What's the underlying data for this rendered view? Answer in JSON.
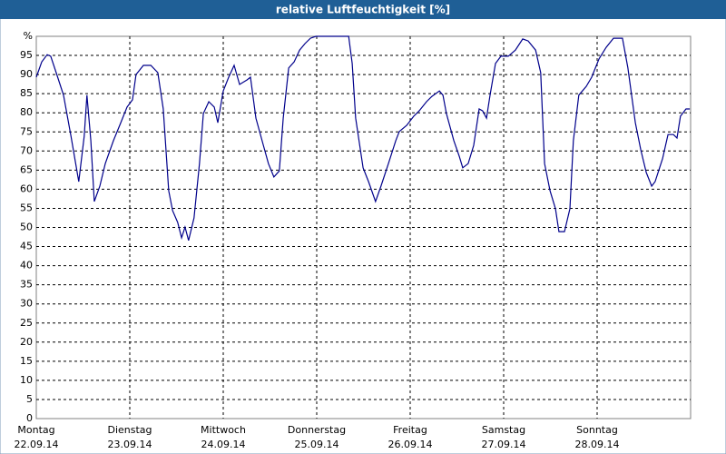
{
  "chart_data": {
    "type": "line",
    "title": "relative Luftfeuchtigkeit [%]",
    "xlim": [
      0,
      168
    ],
    "xticks": [
      {
        "value": 0,
        "label": "Montag"
      },
      {
        "value": 24,
        "label": "Dienstag"
      },
      {
        "value": 48,
        "label": "Mittwoch"
      },
      {
        "value": 72,
        "label": "Donnerstag"
      },
      {
        "value": 96,
        "label": "Freitag"
      },
      {
        "value": 120,
        "label": "Samstag"
      },
      {
        "value": 144,
        "label": "Sonntag"
      }
    ],
    "xtick_dates": [
      "22.09.14",
      "23.09.14",
      "24.09.14",
      "25.09.14",
      "26.09.14",
      "27.09.14",
      "28.09.14"
    ],
    "ylim": [
      0,
      100
    ],
    "yticks": [
      0,
      5,
      10,
      15,
      20,
      25,
      30,
      35,
      40,
      45,
      50,
      55,
      60,
      65,
      70,
      75,
      80,
      85,
      90,
      95,
      {
        "value": 100,
        "label": "%"
      }
    ],
    "grid": true,
    "series": [
      {
        "color": "#00008b",
        "x": [
          0,
          1.4,
          2.8,
          3.7,
          5.1,
          7.0,
          8.9,
          10.9,
          12.3,
          13.0,
          14.0,
          14.9,
          16.3,
          17.7,
          19.8,
          21.7,
          23.3,
          24.7,
          25.6,
          27.5,
          29.4,
          31.2,
          32.6,
          34.0,
          35.0,
          36.3,
          37.3,
          38.2,
          39.1,
          40.5,
          41.9,
          42.9,
          44.3,
          45.7,
          46.6,
          48.0,
          49.4,
          50.8,
          52.2,
          54.1,
          55.0,
          56.4,
          58.3,
          59.6,
          61.0,
          62.4,
          63.4,
          64.8,
          66.2,
          67.6,
          69.0,
          70.4,
          71.8,
          80.2,
          81.1,
          82.0,
          83.9,
          85.3,
          87.1,
          88.5,
          90.4,
          92.3,
          93.2,
          95.1,
          96.9,
          98.3,
          100.2,
          101.6,
          103.5,
          104.4,
          105.3,
          107.2,
          108.6,
          109.5,
          110.9,
          112.3,
          113.7,
          114.6,
          115.6,
          116.5,
          117.9,
          119.3,
          121.2,
          123.0,
          124.9,
          126.3,
          128.2,
          129.5,
          130.5,
          131.9,
          133.3,
          134.2,
          135.6,
          137.0,
          137.9,
          139.3,
          141.2,
          142.6,
          144.5,
          146.3,
          148.2,
          150.5,
          151.9,
          153.8,
          155.2,
          156.6,
          158.0,
          158.9,
          160.8,
          162.2,
          163.6,
          164.5,
          165.4,
          166.8,
          167.8
        ],
        "values": [
          89.3,
          93.3,
          95.2,
          94.8,
          90.5,
          84.6,
          73.9,
          62,
          73.9,
          84.6,
          72.7,
          56.8,
          60.8,
          66.7,
          72.7,
          77.4,
          81.5,
          83.4,
          90,
          92.4,
          92.4,
          90.5,
          81,
          59.6,
          54.4,
          51.3,
          47.3,
          50.1,
          46.6,
          52.5,
          66.7,
          79.8,
          82.9,
          81.5,
          77.4,
          85.7,
          89.3,
          92.4,
          87.4,
          88.6,
          89.3,
          78.6,
          71.5,
          66.7,
          63.2,
          64.8,
          78.6,
          91.7,
          93.3,
          96.4,
          98.1,
          99.5,
          100,
          100,
          92.9,
          78.6,
          65.6,
          62,
          56.8,
          60.8,
          66.7,
          72.7,
          75.1,
          76.7,
          79.1,
          80.5,
          82.9,
          84.3,
          85.7,
          84.6,
          79.8,
          72.7,
          68.6,
          65.6,
          66.7,
          71.5,
          81,
          80.5,
          78.6,
          84.6,
          92.9,
          94.8,
          94.8,
          96.4,
          99.3,
          98.8,
          96.4,
          90.5,
          66.7,
          59.6,
          54.9,
          48.9,
          48.9,
          54.9,
          72.7,
          84.6,
          86.9,
          89.3,
          94.1,
          97.1,
          99.5,
          99.5,
          91.7,
          77.4,
          70.3,
          64.4,
          60.8,
          62,
          68,
          74.3,
          74.3,
          73.4,
          79.1,
          81,
          81
        ]
      }
    ]
  }
}
